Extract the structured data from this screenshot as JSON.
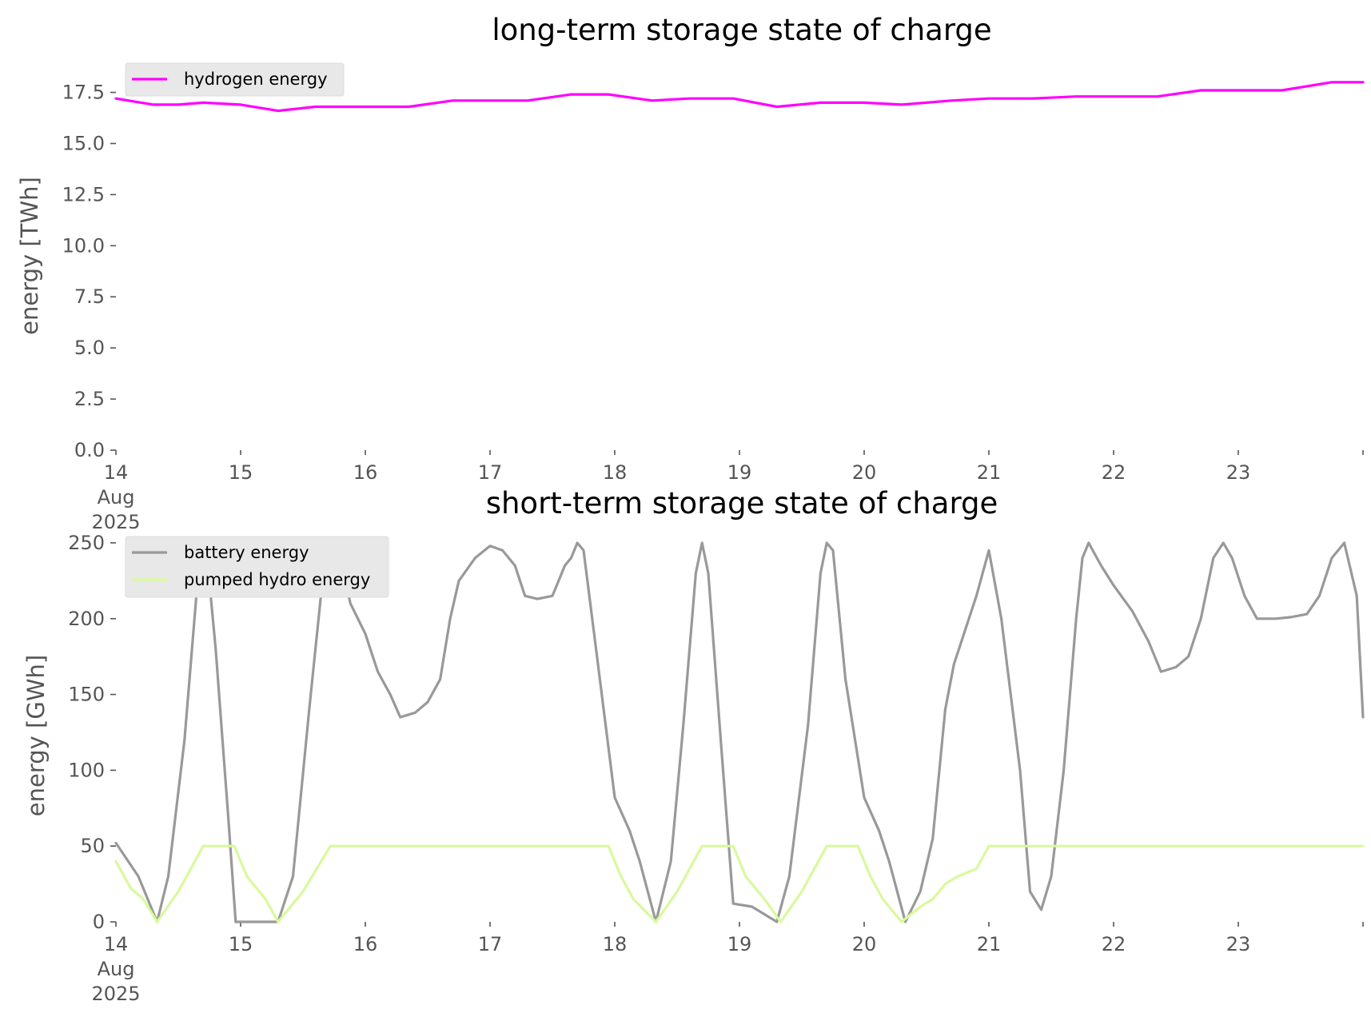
{
  "chart_data": [
    {
      "type": "line",
      "title": "long-term storage state of charge",
      "ylabel": "energy [TWh]",
      "xlabel": "",
      "x_unit": "days (Aug 2025)",
      "xlim": [
        14,
        24
      ],
      "ylim": [
        0,
        18.5
      ],
      "x_ticks": [
        {
          "value": 14,
          "lines": [
            "14",
            "Aug",
            "2025"
          ]
        },
        {
          "value": 15,
          "lines": [
            "15"
          ]
        },
        {
          "value": 16,
          "lines": [
            "16"
          ]
        },
        {
          "value": 17,
          "lines": [
            "17"
          ]
        },
        {
          "value": 18,
          "lines": [
            "18"
          ]
        },
        {
          "value": 19,
          "lines": [
            "19"
          ]
        },
        {
          "value": 20,
          "lines": [
            "20"
          ]
        },
        {
          "value": 21,
          "lines": [
            "21"
          ]
        },
        {
          "value": 22,
          "lines": [
            "22"
          ]
        },
        {
          "value": 23,
          "lines": [
            "23"
          ]
        },
        {
          "value": 24,
          "lines": [
            ""
          ]
        }
      ],
      "y_ticks": [
        {
          "value": 0,
          "label": "0.0"
        },
        {
          "value": 2.5,
          "label": "2.5"
        },
        {
          "value": 5,
          "label": "5.0"
        },
        {
          "value": 7.5,
          "label": "7.5"
        },
        {
          "value": 10,
          "label": "10.0"
        },
        {
          "value": 12.5,
          "label": "12.5"
        },
        {
          "value": 15,
          "label": "15.0"
        },
        {
          "value": 17.5,
          "label": "17.5"
        }
      ],
      "grid": false,
      "legend_position": "top-left",
      "series": [
        {
          "name": "hydrogen energy",
          "color": "#ff00ff",
          "points": [
            [
              14.0,
              17.2
            ],
            [
              14.3,
              16.9
            ],
            [
              14.5,
              16.9
            ],
            [
              14.7,
              17.0
            ],
            [
              15.0,
              16.9
            ],
            [
              15.3,
              16.6
            ],
            [
              15.6,
              16.8
            ],
            [
              16.0,
              16.8
            ],
            [
              16.35,
              16.8
            ],
            [
              16.7,
              17.1
            ],
            [
              17.0,
              17.1
            ],
            [
              17.3,
              17.1
            ],
            [
              17.65,
              17.4
            ],
            [
              17.95,
              17.4
            ],
            [
              18.3,
              17.1
            ],
            [
              18.6,
              17.2
            ],
            [
              18.95,
              17.2
            ],
            [
              19.3,
              16.8
            ],
            [
              19.65,
              17.0
            ],
            [
              20.0,
              17.0
            ],
            [
              20.3,
              16.9
            ],
            [
              20.7,
              17.1
            ],
            [
              21.0,
              17.2
            ],
            [
              21.35,
              17.2
            ],
            [
              21.7,
              17.3
            ],
            [
              22.0,
              17.3
            ],
            [
              22.35,
              17.3
            ],
            [
              22.7,
              17.6
            ],
            [
              23.0,
              17.6
            ],
            [
              23.35,
              17.6
            ],
            [
              23.75,
              18.0
            ],
            [
              24.0,
              18.0
            ]
          ]
        }
      ]
    },
    {
      "type": "line",
      "title": "short-term storage state of charge",
      "ylabel": "energy [GWh]",
      "xlabel": "",
      "x_unit": "days (Aug 2025)",
      "xlim": [
        14,
        24
      ],
      "ylim": [
        0,
        260
      ],
      "x_ticks": [
        {
          "value": 14,
          "lines": [
            "14",
            "Aug",
            "2025"
          ]
        },
        {
          "value": 15,
          "lines": [
            "15"
          ]
        },
        {
          "value": 16,
          "lines": [
            "16"
          ]
        },
        {
          "value": 17,
          "lines": [
            "17"
          ]
        },
        {
          "value": 18,
          "lines": [
            "18"
          ]
        },
        {
          "value": 19,
          "lines": [
            "19"
          ]
        },
        {
          "value": 20,
          "lines": [
            "20"
          ]
        },
        {
          "value": 21,
          "lines": [
            "21"
          ]
        },
        {
          "value": 22,
          "lines": [
            "22"
          ]
        },
        {
          "value": 23,
          "lines": [
            "23"
          ]
        },
        {
          "value": 24,
          "lines": [
            ""
          ]
        }
      ],
      "y_ticks": [
        {
          "value": 0,
          "label": "0"
        },
        {
          "value": 50,
          "label": "50"
        },
        {
          "value": 100,
          "label": "100"
        },
        {
          "value": 150,
          "label": "150"
        },
        {
          "value": 200,
          "label": "200"
        },
        {
          "value": 250,
          "label": "250"
        }
      ],
      "grid": false,
      "legend_position": "top-left",
      "series": [
        {
          "name": "battery energy",
          "color": "#999999",
          "points": [
            [
              14.0,
              52
            ],
            [
              14.18,
              30
            ],
            [
              14.33,
              0
            ],
            [
              14.42,
              30
            ],
            [
              14.55,
              120
            ],
            [
              14.65,
              220
            ],
            [
              14.72,
              250
            ],
            [
              14.8,
              180
            ],
            [
              14.9,
              70
            ],
            [
              14.96,
              0
            ],
            [
              15.3,
              0
            ],
            [
              15.42,
              30
            ],
            [
              15.55,
              140
            ],
            [
              15.65,
              220
            ],
            [
              15.72,
              250
            ],
            [
              15.8,
              240
            ],
            [
              15.88,
              210
            ],
            [
              16.0,
              190
            ],
            [
              16.1,
              165
            ],
            [
              16.2,
              150
            ],
            [
              16.28,
              135
            ],
            [
              16.4,
              138
            ],
            [
              16.5,
              145
            ],
            [
              16.6,
              160
            ],
            [
              16.68,
              200
            ],
            [
              16.75,
              225
            ],
            [
              16.88,
              240
            ],
            [
              17.0,
              248
            ],
            [
              17.1,
              245
            ],
            [
              17.2,
              235
            ],
            [
              17.28,
              215
            ],
            [
              17.38,
              213
            ],
            [
              17.5,
              215
            ],
            [
              17.6,
              235
            ],
            [
              17.65,
              240
            ],
            [
              17.7,
              250
            ],
            [
              17.75,
              245
            ],
            [
              17.85,
              180
            ],
            [
              18.0,
              82
            ],
            [
              18.12,
              60
            ],
            [
              18.2,
              40
            ],
            [
              18.33,
              0
            ],
            [
              18.45,
              40
            ],
            [
              18.55,
              130
            ],
            [
              18.65,
              230
            ],
            [
              18.7,
              250
            ],
            [
              18.75,
              230
            ],
            [
              18.85,
              120
            ],
            [
              18.95,
              12
            ],
            [
              19.1,
              10
            ],
            [
              19.3,
              0
            ],
            [
              19.4,
              30
            ],
            [
              19.55,
              130
            ],
            [
              19.65,
              230
            ],
            [
              19.7,
              250
            ],
            [
              19.75,
              245
            ],
            [
              19.85,
              160
            ],
            [
              20.0,
              82
            ],
            [
              20.12,
              60
            ],
            [
              20.2,
              40
            ],
            [
              20.33,
              0
            ],
            [
              20.45,
              20
            ],
            [
              20.55,
              55
            ],
            [
              20.65,
              140
            ],
            [
              20.72,
              170
            ],
            [
              20.8,
              190
            ],
            [
              20.9,
              215
            ],
            [
              21.0,
              245
            ],
            [
              21.1,
              200
            ],
            [
              21.25,
              100
            ],
            [
              21.33,
              20
            ],
            [
              21.42,
              8
            ],
            [
              21.5,
              30
            ],
            [
              21.6,
              100
            ],
            [
              21.7,
              200
            ],
            [
              21.75,
              240
            ],
            [
              21.8,
              250
            ],
            [
              21.9,
              235
            ],
            [
              22.0,
              222
            ],
            [
              22.15,
              205
            ],
            [
              22.28,
              185
            ],
            [
              22.38,
              165
            ],
            [
              22.5,
              168
            ],
            [
              22.6,
              175
            ],
            [
              22.7,
              200
            ],
            [
              22.8,
              240
            ],
            [
              22.88,
              250
            ],
            [
              22.95,
              240
            ],
            [
              23.05,
              215
            ],
            [
              23.15,
              200
            ],
            [
              23.3,
              200
            ],
            [
              23.42,
              201
            ],
            [
              23.55,
              203
            ],
            [
              23.65,
              215
            ],
            [
              23.75,
              240
            ],
            [
              23.85,
              250
            ],
            [
              23.95,
              215
            ],
            [
              24.0,
              135
            ]
          ]
        },
        {
          "name": "pumped hydro energy",
          "color": "#d9f99d",
          "points": [
            [
              14.0,
              40
            ],
            [
              14.12,
              22
            ],
            [
              14.22,
              15
            ],
            [
              14.33,
              0
            ],
            [
              14.5,
              20
            ],
            [
              14.7,
              50
            ],
            [
              14.95,
              50
            ],
            [
              15.05,
              30
            ],
            [
              15.2,
              15
            ],
            [
              15.3,
              0
            ],
            [
              15.5,
              20
            ],
            [
              15.72,
              50
            ],
            [
              16.0,
              50
            ],
            [
              17.0,
              50
            ],
            [
              17.95,
              50
            ],
            [
              18.05,
              30
            ],
            [
              18.15,
              15
            ],
            [
              18.33,
              0
            ],
            [
              18.5,
              20
            ],
            [
              18.7,
              50
            ],
            [
              18.95,
              50
            ],
            [
              19.05,
              30
            ],
            [
              19.2,
              15
            ],
            [
              19.33,
              0
            ],
            [
              19.5,
              20
            ],
            [
              19.7,
              50
            ],
            [
              19.95,
              50
            ],
            [
              20.05,
              30
            ],
            [
              20.15,
              15
            ],
            [
              20.3,
              0
            ],
            [
              20.45,
              10
            ],
            [
              20.55,
              15
            ],
            [
              20.65,
              25
            ],
            [
              20.75,
              30
            ],
            [
              20.9,
              35
            ],
            [
              21.0,
              50
            ],
            [
              22.0,
              50
            ],
            [
              23.0,
              50
            ],
            [
              24.0,
              50
            ]
          ]
        }
      ]
    }
  ]
}
